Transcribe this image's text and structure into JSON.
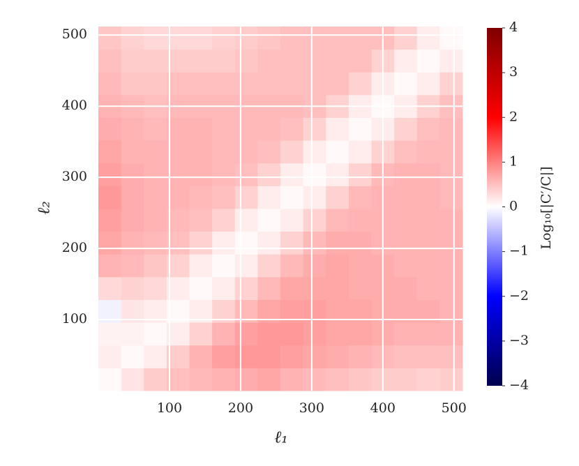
{
  "chart_data": {
    "type": "heatmap",
    "xlabel": "ℓ₁",
    "ylabel": "ℓ₂",
    "colorbar_label": "Log₁₀[|C′/C|]",
    "xbins": [
      0,
      32,
      64,
      96,
      128,
      160,
      192,
      224,
      256,
      288,
      320,
      352,
      384,
      416,
      448,
      480,
      512
    ],
    "ybins": [
      0,
      32,
      64,
      96,
      128,
      160,
      192,
      224,
      256,
      288,
      320,
      352,
      384,
      416,
      448,
      480,
      512
    ],
    "z": [
      [
        0.05,
        0.2,
        0.4,
        0.5,
        0.55,
        0.6,
        0.65,
        0.7,
        0.6,
        0.55,
        0.5,
        0.45,
        0.4,
        0.4,
        0.35,
        0.4
      ],
      [
        0.15,
        0.05,
        0.15,
        0.4,
        0.6,
        0.75,
        0.8,
        0.8,
        0.75,
        0.7,
        0.65,
        0.6,
        0.55,
        0.5,
        0.5,
        0.5
      ],
      [
        0.1,
        0.1,
        0.05,
        0.15,
        0.35,
        0.6,
        0.75,
        0.8,
        0.8,
        0.75,
        0.7,
        0.7,
        0.65,
        0.6,
        0.6,
        0.6
      ],
      [
        -0.1,
        0.2,
        0.15,
        0.05,
        0.15,
        0.35,
        0.55,
        0.7,
        0.75,
        0.75,
        0.7,
        0.7,
        0.65,
        0.65,
        0.65,
        0.6
      ],
      [
        0.3,
        0.35,
        0.3,
        0.15,
        0.05,
        0.15,
        0.35,
        0.55,
        0.7,
        0.7,
        0.7,
        0.65,
        0.65,
        0.65,
        0.6,
        0.6
      ],
      [
        0.6,
        0.55,
        0.45,
        0.35,
        0.15,
        0.05,
        0.15,
        0.35,
        0.55,
        0.65,
        0.7,
        0.65,
        0.65,
        0.6,
        0.6,
        0.6
      ],
      [
        0.7,
        0.6,
        0.55,
        0.5,
        0.35,
        0.15,
        0.05,
        0.15,
        0.35,
        0.55,
        0.65,
        0.65,
        0.6,
        0.6,
        0.6,
        0.6
      ],
      [
        0.75,
        0.65,
        0.6,
        0.55,
        0.5,
        0.35,
        0.15,
        0.05,
        0.15,
        0.35,
        0.55,
        0.6,
        0.6,
        0.6,
        0.6,
        0.6
      ],
      [
        0.8,
        0.65,
        0.6,
        0.6,
        0.55,
        0.5,
        0.35,
        0.15,
        0.05,
        0.15,
        0.35,
        0.55,
        0.6,
        0.6,
        0.6,
        0.55
      ],
      [
        0.75,
        0.65,
        0.6,
        0.6,
        0.6,
        0.55,
        0.5,
        0.35,
        0.15,
        0.05,
        0.15,
        0.35,
        0.55,
        0.6,
        0.6,
        0.55
      ],
      [
        0.7,
        0.6,
        0.6,
        0.6,
        0.6,
        0.55,
        0.55,
        0.5,
        0.35,
        0.15,
        0.05,
        0.15,
        0.35,
        0.5,
        0.55,
        0.55
      ],
      [
        0.65,
        0.6,
        0.55,
        0.6,
        0.6,
        0.55,
        0.55,
        0.55,
        0.5,
        0.35,
        0.15,
        0.05,
        0.15,
        0.35,
        0.5,
        0.55
      ],
      [
        0.6,
        0.55,
        0.5,
        0.55,
        0.55,
        0.55,
        0.55,
        0.55,
        0.55,
        0.5,
        0.35,
        0.15,
        0.05,
        0.15,
        0.35,
        0.5
      ],
      [
        0.55,
        0.45,
        0.45,
        0.5,
        0.5,
        0.5,
        0.5,
        0.5,
        0.5,
        0.5,
        0.5,
        0.35,
        0.15,
        0.05,
        0.15,
        0.35
      ],
      [
        0.5,
        0.4,
        0.4,
        0.4,
        0.4,
        0.4,
        0.45,
        0.5,
        0.5,
        0.5,
        0.5,
        0.5,
        0.35,
        0.15,
        0.05,
        0.15
      ],
      [
        0.45,
        0.35,
        0.3,
        0.3,
        0.3,
        0.35,
        0.4,
        0.45,
        0.5,
        0.5,
        0.5,
        0.5,
        0.5,
        0.35,
        0.15,
        0.05
      ]
    ],
    "xlim": [
      0,
      512
    ],
    "ylim": [
      0,
      512
    ],
    "xticks": [
      100,
      200,
      300,
      400,
      500
    ],
    "yticks": [
      100,
      200,
      300,
      400,
      500
    ],
    "grid": true,
    "grid_color": "#ffffff",
    "clim": [
      -4,
      4
    ],
    "colormap": [
      "#00004c",
      "#0000ff",
      "#ffffff",
      "#ff0000",
      "#7f0000"
    ],
    "cticks": [
      {
        "value": -4,
        "label": "−4"
      },
      {
        "value": -3,
        "label": "−3"
      },
      {
        "value": -2,
        "label": "−2"
      },
      {
        "value": -1,
        "label": "−1"
      },
      0,
      1,
      2,
      3,
      4
    ]
  }
}
